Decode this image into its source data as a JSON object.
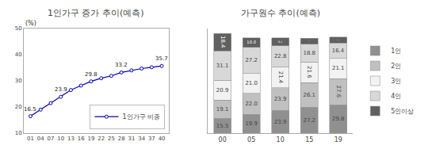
{
  "chart_data": [
    {
      "type": "line",
      "title": "1인가구 증가 추이(예측)",
      "ylabel": "(%)",
      "x": [
        1,
        4,
        7,
        10,
        13,
        16,
        19,
        22,
        25,
        28,
        31,
        34,
        37,
        40
      ],
      "series": [
        {
          "name": "1인가구 비중",
          "color": "#0000aa",
          "marker": "circle",
          "values": [
            16.5,
            19.0,
            21.5,
            23.9,
            26.5,
            28.2,
            29.8,
            31.0,
            31.9,
            33.2,
            34.0,
            34.7,
            35.2,
            35.7
          ]
        }
      ],
      "xlim": [
        -1,
        42
      ],
      "xticks": [
        {
          "value": 1,
          "label": "01"
        },
        {
          "value": 4,
          "label": "04"
        },
        {
          "value": 7,
          "label": "07"
        },
        10,
        13,
        16,
        19,
        22,
        25,
        28,
        31,
        34,
        37,
        40
      ],
      "ylim": [
        10,
        50
      ],
      "yticks": [
        10,
        20,
        30,
        40,
        50
      ],
      "annotations": [
        {
          "x": 1,
          "y": 16.5,
          "text": "16.5"
        },
        {
          "x": 10,
          "y": 23.9,
          "text": "23.9"
        },
        {
          "x": 19,
          "y": 29.8,
          "text": "29.8"
        },
        {
          "x": 28,
          "y": 33.2,
          "text": "33.2"
        },
        {
          "x": 40,
          "y": 35.7,
          "text": "35.7"
        }
      ],
      "grid": false,
      "legend": "lower right"
    },
    {
      "type": "bar",
      "title": "가구원수 추이(예측)",
      "categories": [
        "00",
        "05",
        "10",
        "15",
        "19"
      ],
      "stacked": true,
      "data_labels": true,
      "series": [
        {
          "name": "1인",
          "color": "#909090",
          "values": [
            15.5,
            19.9,
            23.9,
            27.2,
            29.8
          ],
          "value_labels": [
            "15.5",
            "19.9",
            "23.9",
            "27.2",
            "29.8"
          ]
        },
        {
          "name": "2인",
          "color": "#c0c0c0",
          "values": [
            19.1,
            22.0,
            23.9,
            26.1,
            27.6
          ],
          "value_labels": [
            "19.1",
            "22.0",
            "23.9",
            "26.1",
            "27.6"
          ]
        },
        {
          "name": "3인",
          "color": "#f2f2f2",
          "values": [
            20.9,
            21.0,
            21.4,
            21.6,
            21.1
          ],
          "value_labels": [
            "20.9",
            "21.0",
            "21.4",
            "21.6",
            "21.1"
          ]
        },
        {
          "name": "4인",
          "color": "#d8d8d8",
          "values": [
            31.1,
            27.2,
            22.8,
            18.8,
            16.4
          ],
          "value_labels": [
            "31.1",
            "27.2",
            "22.8",
            "18.8",
            "16.4"
          ]
        },
        {
          "name": "5인이상",
          "color": "#606060",
          "values": [
            18.4,
            10.0,
            8.1,
            6.1,
            6.2
          ],
          "value_labels": [
            "18.4",
            "10.0",
            "8.1",
            "6.1",
            "6.2"
          ]
        }
      ],
      "ylim": [
        0,
        110
      ],
      "tick_labels": "x",
      "grid": false,
      "legend": "right"
    }
  ]
}
